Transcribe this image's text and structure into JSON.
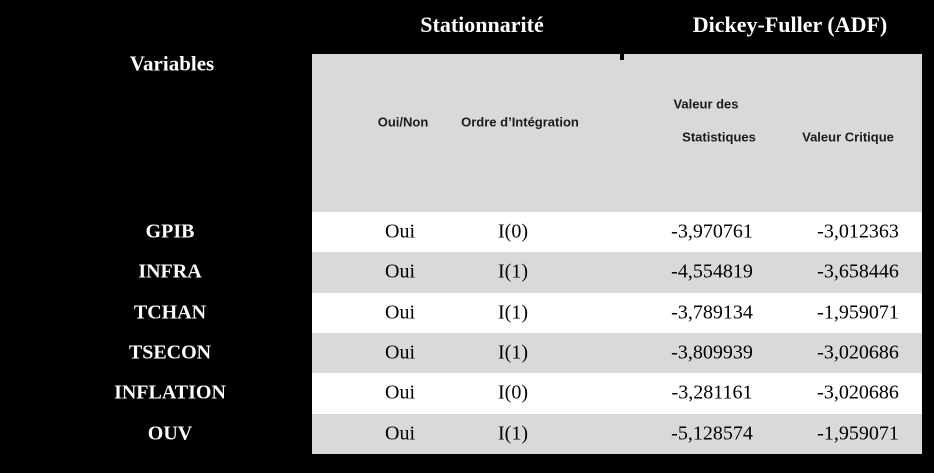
{
  "header": {
    "stationnarite": "Stationnarité",
    "dickey_fuller": "Dickey-Fuller (ADF)",
    "variables": "Variables"
  },
  "subheaders": {
    "oui_non": "Oui/Non",
    "ordre_integration": "Ordre d’Intégration",
    "valeur_des": "Valeur des",
    "statistiques": "Statistiques",
    "valeur_critique": "Valeur Critique"
  },
  "colors": {
    "background": "#000000",
    "panel_gray": "#d9d9d9",
    "row_white": "#ffffff",
    "header_text": "#ffffff",
    "data_text": "#000000"
  },
  "rows": [
    {
      "variable": "GPIB",
      "stationnaire": "Oui",
      "ordre": "I(0)",
      "statistique": "-3,970761",
      "critique": "-3,012363"
    },
    {
      "variable": "INFRA",
      "stationnaire": "Oui",
      "ordre": "I(1)",
      "statistique": "-4,554819",
      "critique": "-3,658446"
    },
    {
      "variable": "TCHAN",
      "stationnaire": "Oui",
      "ordre": "I(1)",
      "statistique": "-3,789134",
      "critique": "-1,959071"
    },
    {
      "variable": "TSECON",
      "stationnaire": "Oui",
      "ordre": "I(1)",
      "statistique": "-3,809939",
      "critique": "-3,020686"
    },
    {
      "variable": "INFLATION",
      "stationnaire": "Oui",
      "ordre": "I(0)",
      "statistique": "-3,281161",
      "critique": "-3,020686"
    },
    {
      "variable": "OUV",
      "stationnaire": "Oui",
      "ordre": "I(1)",
      "statistique": "-5,128574",
      "critique": "-1,959071"
    }
  ]
}
